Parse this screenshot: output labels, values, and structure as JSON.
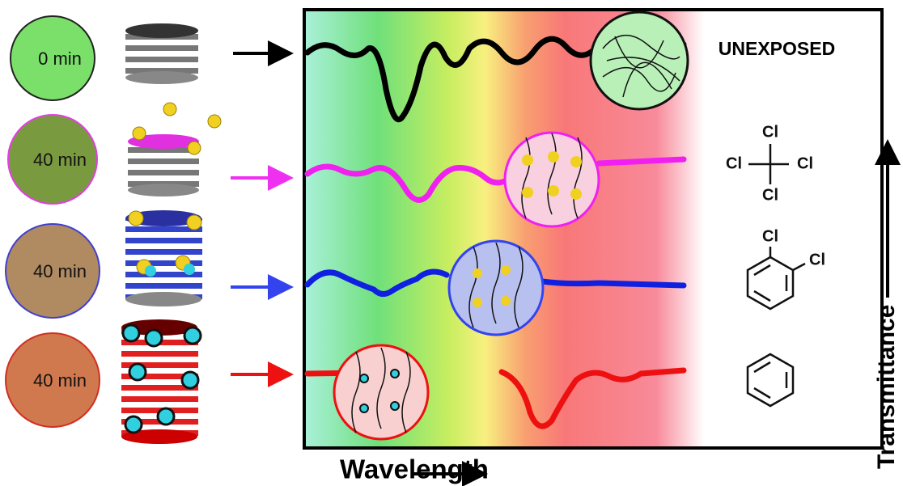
{
  "samples": [
    {
      "time": "0 min"
    },
    {
      "time": "40 min"
    },
    {
      "time": "40 min"
    },
    {
      "time": "40 min"
    }
  ],
  "unexposed_label": "UNEXPOSED",
  "molecules": {
    "carbon_tetrachloride": {
      "atoms": [
        "Cl",
        "Cl",
        "Cl",
        "Cl"
      ]
    },
    "dichlorobenzene": {
      "atoms": [
        "Cl",
        "Cl"
      ]
    }
  },
  "axes": {
    "x": "Wavelength",
    "y": "Transmittance"
  }
}
